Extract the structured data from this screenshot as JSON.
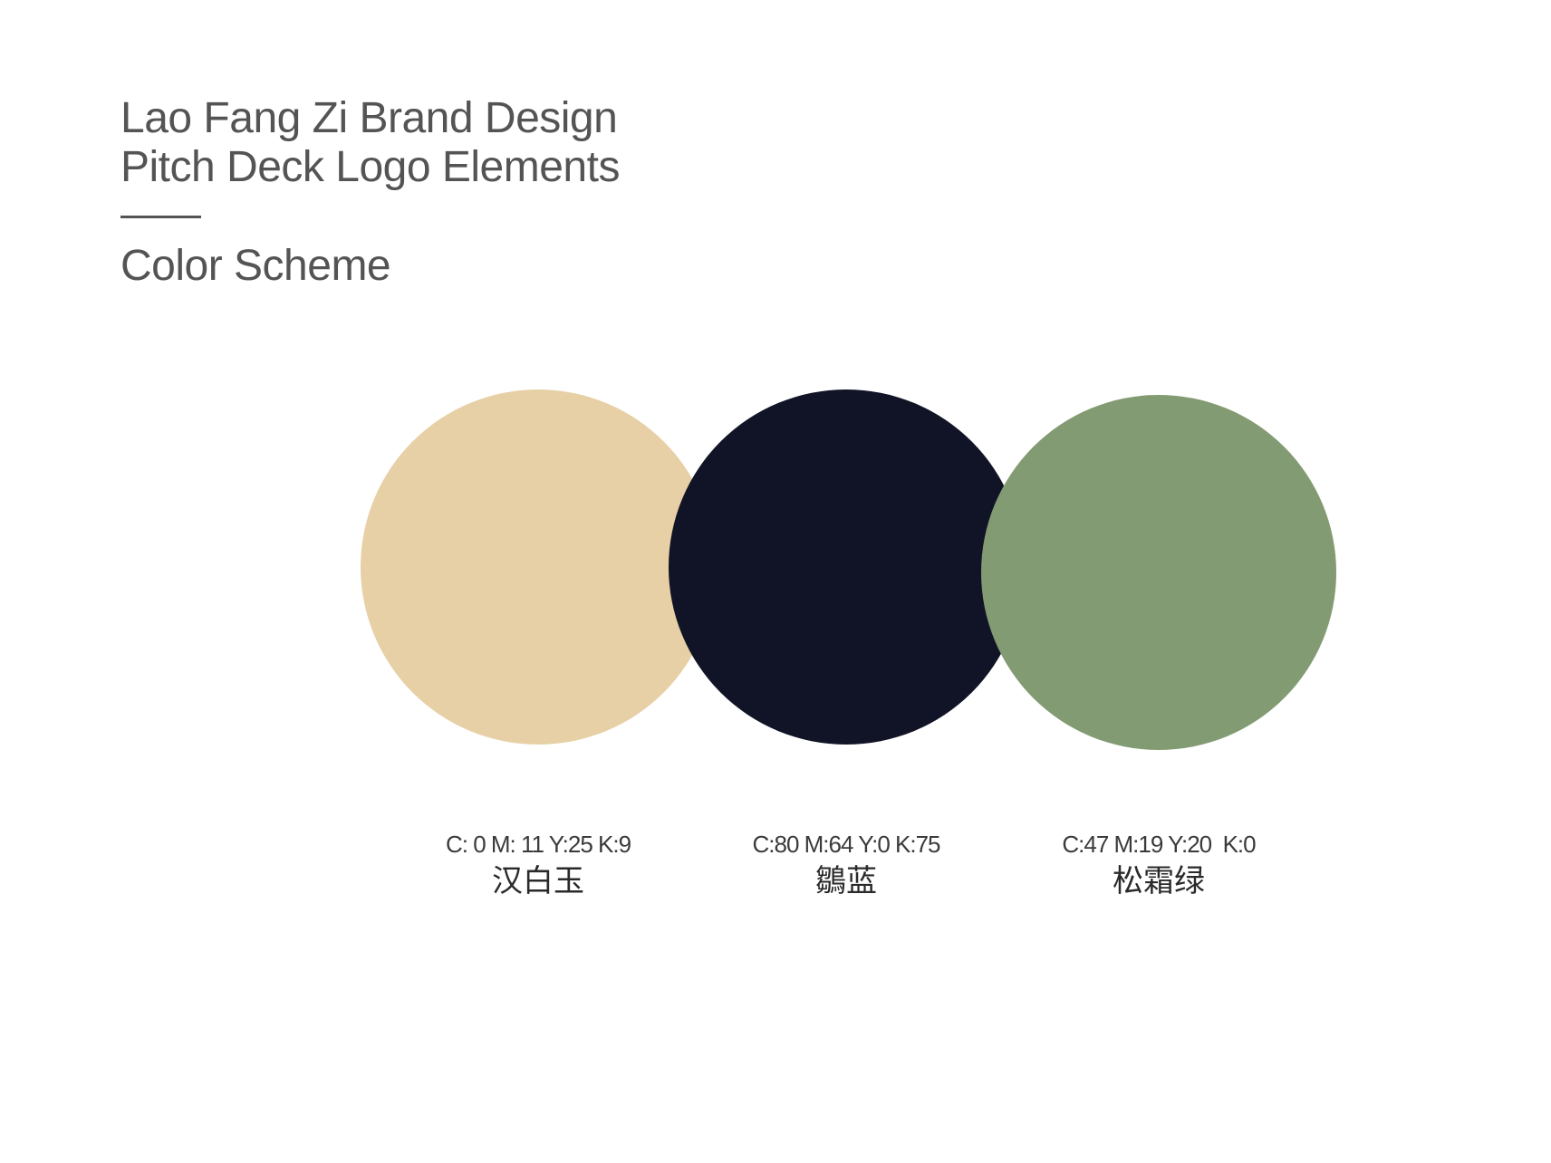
{
  "header": {
    "title_line_1": "Lao Fang Zi Brand Design",
    "title_line_2": "Pitch Deck Logo Elements",
    "section_title": "Color Scheme"
  },
  "swatches": [
    {
      "cmyk": "C: 0 M: 11 Y:25 K:9",
      "name": "汉白玉",
      "color": "#E7D0A6"
    },
    {
      "cmyk": "C:80 M:64 Y:0 K:75",
      "name": "鶵蓝",
      "color": "#111426"
    },
    {
      "cmyk": "C:47 M:19 Y:20  K:0",
      "name": "松霜绿",
      "color": "#839B72"
    }
  ]
}
